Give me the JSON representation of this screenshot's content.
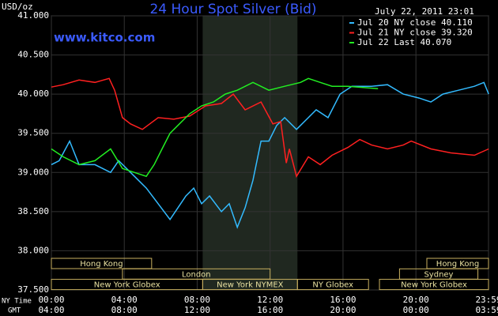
{
  "chart_data": {
    "type": "line",
    "title": "24 Hour Spot Silver (Bid)",
    "site": "www.kitco.com",
    "timestamp": "July 22, 2011 23:01",
    "ylabel": "USD/oz",
    "xlabel": "NY Time",
    "x2label": "GMT",
    "ylim": [
      37.5,
      41
    ],
    "yticks": [
      {
        "value": 37.5,
        "label": "37.500"
      },
      {
        "value": 38,
        "label": "38.000"
      },
      {
        "value": 38.5,
        "label": "38.500"
      },
      {
        "value": 39,
        "label": "39.000"
      },
      {
        "value": 39.5,
        "label": "39.500"
      },
      {
        "value": 40,
        "label": "40.000"
      },
      {
        "value": 40.5,
        "label": "40.500"
      },
      {
        "value": 41,
        "label": "41.000"
      }
    ],
    "xlim": [
      0,
      23.983
    ],
    "xticks": [
      {
        "value": 0,
        "label": "00:00"
      },
      {
        "value": 4,
        "label": "04:00"
      },
      {
        "value": 8,
        "label": "08:00"
      },
      {
        "value": 12,
        "label": "12:00"
      },
      {
        "value": 16,
        "label": "16:00"
      },
      {
        "value": 20,
        "label": "20:00"
      },
      {
        "value": 23.983,
        "label": "23:59"
      }
    ],
    "x2tick_labels": [
      "04:00",
      "08:00",
      "12:00",
      "16:00",
      "20:00",
      "00:00",
      "03:59"
    ],
    "grid": true,
    "highlight": [
      8.3,
      13.5
    ],
    "sessions": [
      {
        "name": "Hong Kong",
        "start": 0,
        "end": 5.5,
        "row": 0
      },
      {
        "name": "Hong Kong",
        "start": 20.6,
        "end": 23.983,
        "row": 0
      },
      {
        "name": "London",
        "start": 3.9,
        "end": 12,
        "row": 1
      },
      {
        "name": "Sydney",
        "start": 19.1,
        "end": 23.4,
        "row": 1
      },
      {
        "name": "New York Globex",
        "start": 0,
        "end": 8.3,
        "row": 2
      },
      {
        "name": "New York NYMEX",
        "start": 8.3,
        "end": 13.5,
        "row": 2
      },
      {
        "name": "NY Globex",
        "start": 13.5,
        "end": 17.4,
        "row": 2
      },
      {
        "name": "New York Globex",
        "start": 18,
        "end": 23.983,
        "row": 2
      }
    ],
    "series": [
      {
        "name": "Jul 20 NY close 40.110",
        "color": "#33bbff",
        "x": [
          0,
          0.43,
          1.0,
          1.52,
          2.39,
          3.25,
          3.69,
          4.56,
          5.21,
          5.86,
          6.51,
          7.38,
          7.81,
          8.24,
          8.68,
          9.33,
          9.76,
          10.2,
          10.63,
          11.06,
          11.5,
          11.93,
          12.36,
          12.8,
          13.45,
          14.1,
          14.53,
          15.18,
          15.84,
          16.49,
          17.57,
          18.44,
          19.31,
          20.17,
          20.82,
          21.48,
          22.34,
          23.21,
          23.73,
          23.99
        ],
        "values": [
          39.1,
          39.15,
          39.4,
          39.1,
          39.1,
          39.0,
          39.15,
          38.95,
          38.8,
          38.6,
          38.4,
          38.7,
          38.8,
          38.6,
          38.7,
          38.5,
          38.6,
          38.3,
          38.55,
          38.9,
          39.4,
          39.4,
          39.6,
          39.7,
          39.55,
          39.7,
          39.8,
          39.7,
          40.0,
          40.1,
          40.1,
          40.12,
          40.0,
          39.95,
          39.9,
          40.0,
          40.05,
          40.1,
          40.15,
          40.0
        ]
      },
      {
        "name": "Jul 21 NY close 39.320",
        "color": "#ff2020",
        "x": [
          0,
          0.65,
          1.52,
          2.39,
          3.17,
          3.47,
          3.9,
          4.34,
          4.99,
          5.86,
          6.72,
          7.59,
          8.46,
          9.33,
          9.98,
          10.63,
          11.5,
          12.15,
          12.58,
          12.89,
          13.06,
          13.45,
          14.1,
          14.75,
          15.4,
          16.27,
          16.92,
          17.57,
          18.44,
          19.31,
          19.74,
          20.82,
          21.91,
          23.21,
          23.99
        ],
        "values": [
          40.09,
          40.12,
          40.18,
          40.15,
          40.2,
          40.05,
          39.7,
          39.62,
          39.55,
          39.7,
          39.68,
          39.72,
          39.85,
          39.88,
          40.0,
          39.8,
          39.9,
          39.62,
          39.65,
          39.12,
          39.3,
          38.95,
          39.2,
          39.1,
          39.22,
          39.32,
          39.42,
          39.35,
          39.3,
          39.35,
          39.4,
          39.3,
          39.25,
          39.22,
          39.3
        ]
      },
      {
        "name": "Jul 22 Last 40.070",
        "color": "#22ee22",
        "x": [
          0,
          0.65,
          1.52,
          2.39,
          3.25,
          3.9,
          4.56,
          5.21,
          5.64,
          6.07,
          6.51,
          6.94,
          7.59,
          8.24,
          8.89,
          9.54,
          10.2,
          11.06,
          11.93,
          12.8,
          13.67,
          14.1,
          14.75,
          15.4,
          16.27,
          17.92
        ],
        "values": [
          39.3,
          39.2,
          39.1,
          39.15,
          39.3,
          39.05,
          39.0,
          38.95,
          39.1,
          39.3,
          39.5,
          39.6,
          39.75,
          39.85,
          39.9,
          40.0,
          40.05,
          40.15,
          40.05,
          40.1,
          40.15,
          40.2,
          40.15,
          40.1,
          40.1,
          40.07
        ]
      }
    ]
  }
}
